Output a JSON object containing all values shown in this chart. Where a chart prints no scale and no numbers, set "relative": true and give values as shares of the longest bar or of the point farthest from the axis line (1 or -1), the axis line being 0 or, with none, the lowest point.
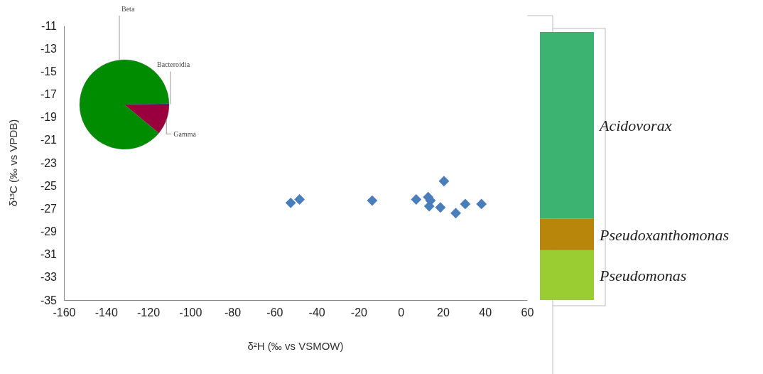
{
  "chart_data": [
    {
      "type": "scatter",
      "xlabel": "δ²H (‰ vs VSMOW)",
      "ylabel": "δ¹³C (‰ vs VPDB)",
      "marker": "diamond",
      "x": [
        -52.3,
        -48.1,
        -13.6,
        7.3,
        13.0,
        14.1,
        13.5,
        20.5,
        18.8,
        26.1,
        30.6,
        38.3
      ],
      "series": [
        {
          "color": "#4a7ebb",
          "values": [
            -26.5,
            -26.2,
            -26.3,
            -26.2,
            -26.0,
            -26.3,
            -26.8,
            -24.6,
            -26.9,
            -27.4,
            -26.6,
            -26.6
          ]
        }
      ],
      "xlim": [
        -160,
        60
      ],
      "xticks": [
        -160,
        -140,
        -120,
        -100,
        -80,
        -60,
        -40,
        -20,
        0,
        20,
        40,
        60
      ],
      "ylim": [
        -35,
        -11
      ],
      "yticks": [
        -35,
        -33,
        -31,
        -29,
        -27,
        -25,
        -23,
        -21,
        -19,
        -17,
        -15,
        -13,
        -11
      ]
    },
    {
      "type": "pie",
      "categories": [
        "Gamma",
        "Beta",
        "Bacteroidia"
      ],
      "values": [
        11,
        88.7,
        0.3
      ],
      "colors": [
        "#99003d",
        "#008c00",
        "#1f3a7a"
      ]
    },
    {
      "type": "bar",
      "stacked": true,
      "relative": true,
      "categories": [
        null
      ],
      "series": [
        {
          "name": "Pseudomonas",
          "color": "#9acd32",
          "values": [
            0.186
          ]
        },
        {
          "name": "Pseudoxanthomonas",
          "color": "#b8860b",
          "values": [
            0.117
          ]
        },
        {
          "name": "Acidovorax",
          "color": "#3cb371",
          "values": [
            0.697
          ]
        }
      ]
    }
  ]
}
